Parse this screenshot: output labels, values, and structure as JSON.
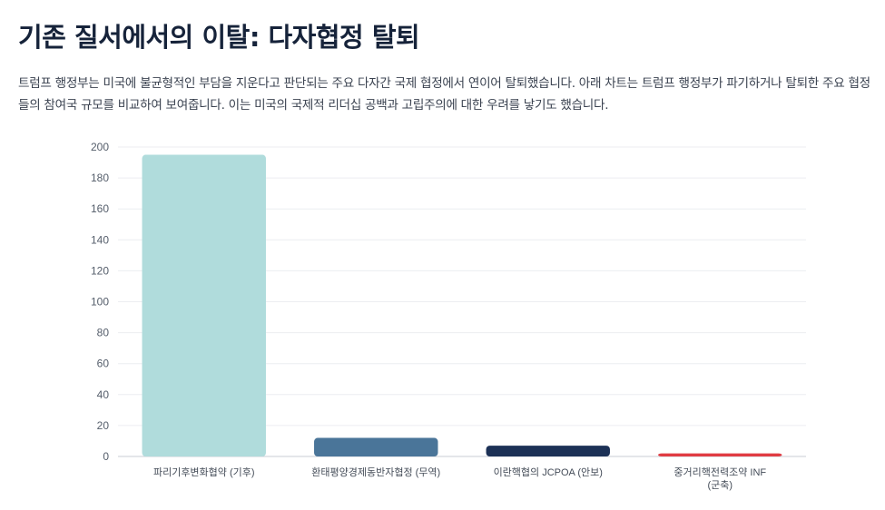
{
  "page": {
    "title": "기존 질서에서의 이탈: 다자협정 탈퇴",
    "description": "트럼프 행정부는 미국에 불균형적인 부담을 지운다고 판단되는 주요 다자간 국제 협정에서 연이어 탈퇴했습니다. 아래 차트는 트럼프 행정부가 파기하거나 탈퇴한 주요 협정들의 참여국 규모를 비교하여 보여줍니다. 이는 미국의 국제적 리더십 공백과 고립주의에 대한 우려를 낳기도 했습니다."
  },
  "chart_data": {
    "type": "bar",
    "categories": [
      [
        "파리기후변화협약 (기후)"
      ],
      [
        "환태평양경제동반자협정 (무역)"
      ],
      [
        "이란핵협의 JCPOA (안보)"
      ],
      [
        "중거리핵전력조약 INF",
        "(군축)"
      ]
    ],
    "values": [
      195,
      12,
      7,
      2
    ],
    "colors": [
      "#b0dcdc",
      "#4a7599",
      "#1c3156",
      "#e03c43"
    ],
    "ylim": [
      0,
      200
    ],
    "yticks": [
      0,
      20,
      40,
      60,
      80,
      100,
      120,
      140,
      160,
      180,
      200
    ],
    "grid": true,
    "legend": "none",
    "title": "",
    "xlabel": "",
    "ylabel": ""
  }
}
